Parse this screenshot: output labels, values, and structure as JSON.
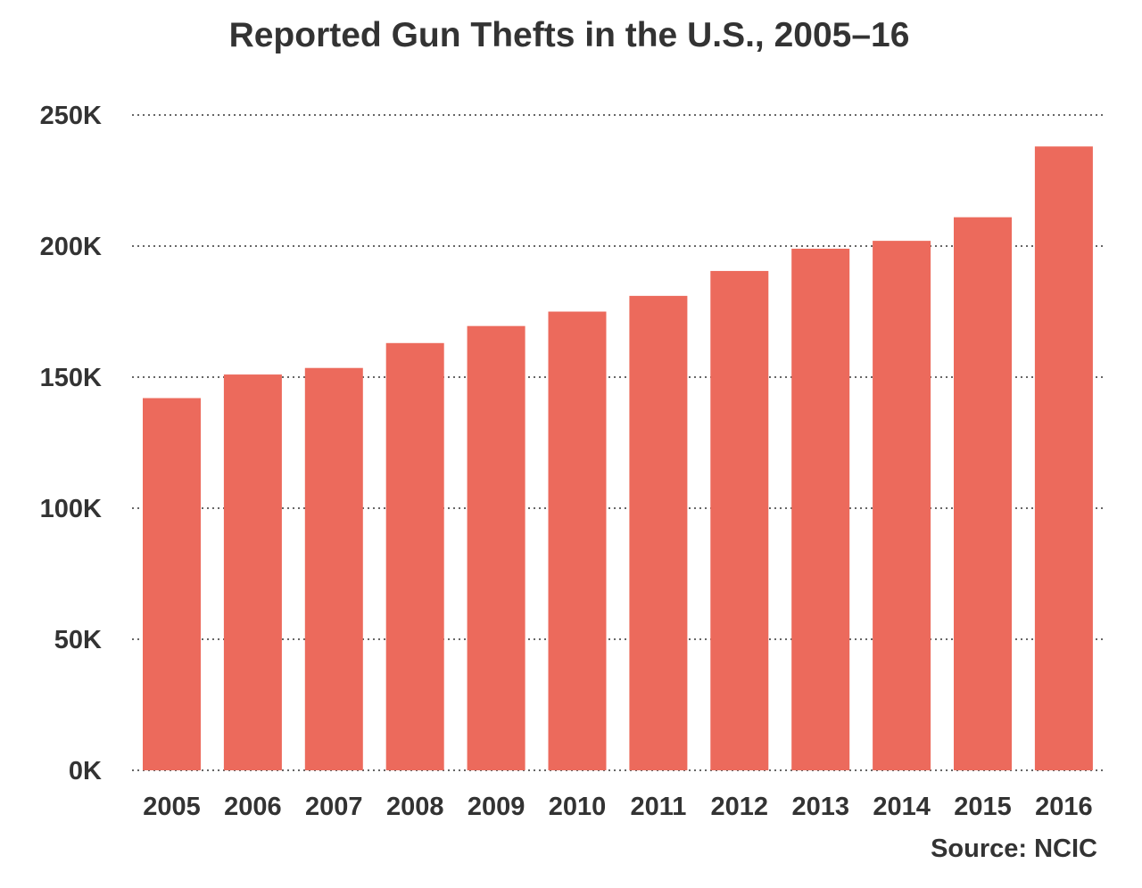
{
  "chart_data": {
    "type": "bar",
    "title": "Reported Gun Thefts in the U.S., 2005–16",
    "xlabel": "",
    "ylabel": "",
    "categories": [
      "2005",
      "2006",
      "2007",
      "2008",
      "2009",
      "2010",
      "2011",
      "2012",
      "2013",
      "2014",
      "2015",
      "2016"
    ],
    "values": [
      142000,
      151000,
      153500,
      163000,
      169500,
      175000,
      181000,
      190500,
      199000,
      202000,
      211000,
      238000
    ],
    "ylim": [
      0,
      250000
    ],
    "yticks": [
      0,
      50000,
      100000,
      150000,
      200000,
      250000
    ],
    "ytick_labels": [
      "0K",
      "50K",
      "100K",
      "150K",
      "200K",
      "250K"
    ],
    "grid": true,
    "bar_color": "#ec6a5c",
    "source": "Source: NCIC"
  }
}
